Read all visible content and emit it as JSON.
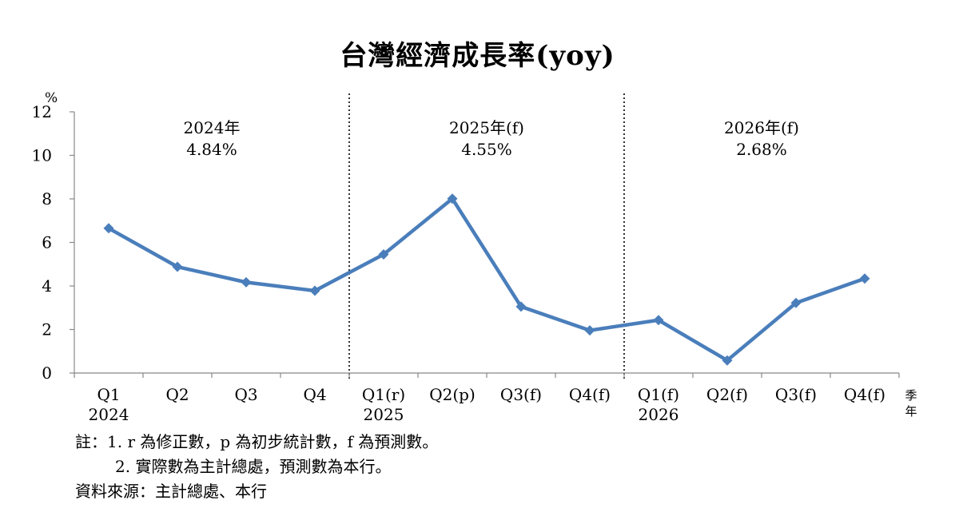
{
  "title": "台灣經濟成長率(yoy)",
  "chart_data": {
    "type": "line",
    "title": "台灣經濟成長率(yoy)",
    "ylabel": "%",
    "xlabel": "季\n年",
    "ylim": [
      0,
      12
    ],
    "yticks": [
      0,
      2,
      4,
      6,
      8,
      10,
      12
    ],
    "grid": false,
    "categories": [
      "Q1",
      "Q2",
      "Q3",
      "Q4",
      "Q1(r)",
      "Q2(p)",
      "Q3(f)",
      "Q4(f)",
      "Q1(f)",
      "Q2(f)",
      "Q3(f)",
      "Q4(f)"
    ],
    "year_labels": [
      {
        "index": 0,
        "label": "2024"
      },
      {
        "index": 4,
        "label": "2025"
      },
      {
        "index": 8,
        "label": "2026"
      }
    ],
    "series": [
      {
        "values": [
          6.65,
          4.88,
          4.17,
          3.78,
          5.45,
          8.01,
          3.05,
          1.96,
          2.43,
          0.58,
          3.22,
          4.34
        ],
        "color": "#4a7ebb"
      }
    ],
    "annotations": [
      {
        "year": "2024年",
        "rate": "4.84%"
      },
      {
        "year": "2025年(f)",
        "rate": "4.55%"
      },
      {
        "year": "2026年(f)",
        "rate": "2.68%"
      }
    ],
    "separators_after_index": [
      3,
      7
    ]
  },
  "notes": {
    "note1": "註：1. r 為修正數，p 為初步統計數，f 為預測數。",
    "note2": "2. 實際數為主計總處，預測數為本行。",
    "source": "資料來源：主計總處、本行"
  }
}
